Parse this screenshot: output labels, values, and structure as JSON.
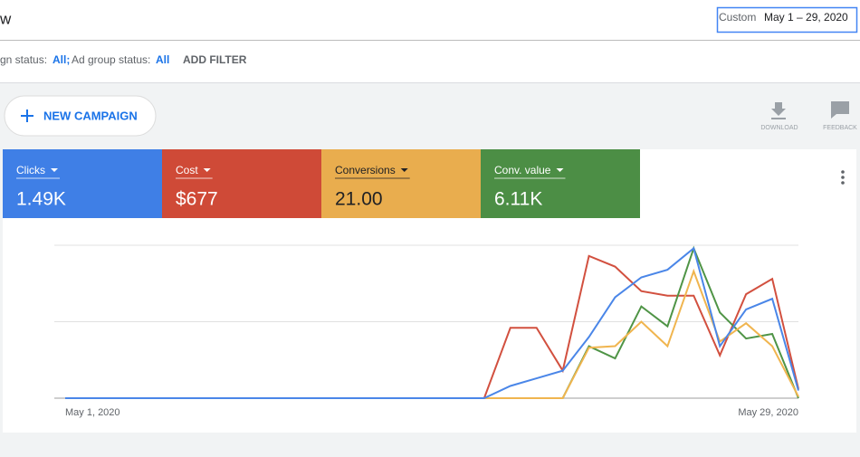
{
  "header": {
    "title": "w",
    "date_label": "Custom",
    "date_range": "May 1 – 29, 2020"
  },
  "filters": {
    "campaign_status_label": "gn status:",
    "campaign_status_value": "All;",
    "ad_group_status_label": "Ad group status:",
    "ad_group_status_value": "All",
    "add_filter": "ADD FILTER"
  },
  "toolbar": {
    "new_campaign": "NEW CAMPAIGN",
    "download": "DOWNLOAD",
    "feedback": "FEEDBACK"
  },
  "metrics": [
    {
      "label": "Clicks",
      "value": "1.49K",
      "color": "#3f7fe6"
    },
    {
      "label": "Cost",
      "value": "$677",
      "color": "#cf4a37"
    },
    {
      "label": "Conversions",
      "value": "21.00",
      "color": "#e9ad4e"
    },
    {
      "label": "Conv. value",
      "value": "6.11K",
      "color": "#4c8e45"
    }
  ],
  "chart_data": {
    "type": "line",
    "categories": [
      "May 1, 2020",
      null,
      null,
      null,
      null,
      null,
      null,
      null,
      null,
      null,
      null,
      null,
      null,
      null,
      null,
      null,
      null,
      null,
      null,
      null,
      null,
      null,
      null,
      null,
      null,
      null,
      null,
      null,
      "May 29, 2020"
    ],
    "series": [
      {
        "name": "Clicks",
        "color": "#4a86e8",
        "values": [
          0,
          0,
          0,
          0,
          0,
          0,
          0,
          0,
          0,
          0,
          0,
          0,
          0,
          0,
          0,
          0,
          0,
          8,
          13,
          18,
          40,
          66,
          79,
          84,
          98,
          34,
          58,
          65,
          5
        ]
      },
      {
        "name": "Cost",
        "color": "#d2503f",
        "values": [
          0,
          0,
          0,
          0,
          0,
          0,
          0,
          0,
          0,
          0,
          0,
          0,
          0,
          0,
          0,
          0,
          0,
          46,
          46,
          18,
          93,
          86,
          70,
          67,
          67,
          28,
          68,
          78,
          6
        ]
      },
      {
        "name": "Conversions",
        "color": "#f0b54f",
        "values": [
          0,
          0,
          0,
          0,
          0,
          0,
          0,
          0,
          0,
          0,
          0,
          0,
          0,
          0,
          0,
          0,
          0,
          0,
          0,
          0,
          33,
          34,
          50,
          34,
          83,
          37,
          49,
          34,
          1
        ]
      },
      {
        "name": "Conv. value",
        "color": "#4f9446",
        "values": [
          0,
          0,
          0,
          0,
          0,
          0,
          0,
          0,
          0,
          0,
          0,
          0,
          0,
          0,
          0,
          0,
          0,
          0,
          0,
          0,
          34,
          26,
          60,
          47,
          98,
          56,
          39,
          42,
          0
        ]
      }
    ],
    "ylim": [
      0,
      100
    ],
    "yticks": [
      0,
      50,
      100
    ],
    "grid": true
  }
}
